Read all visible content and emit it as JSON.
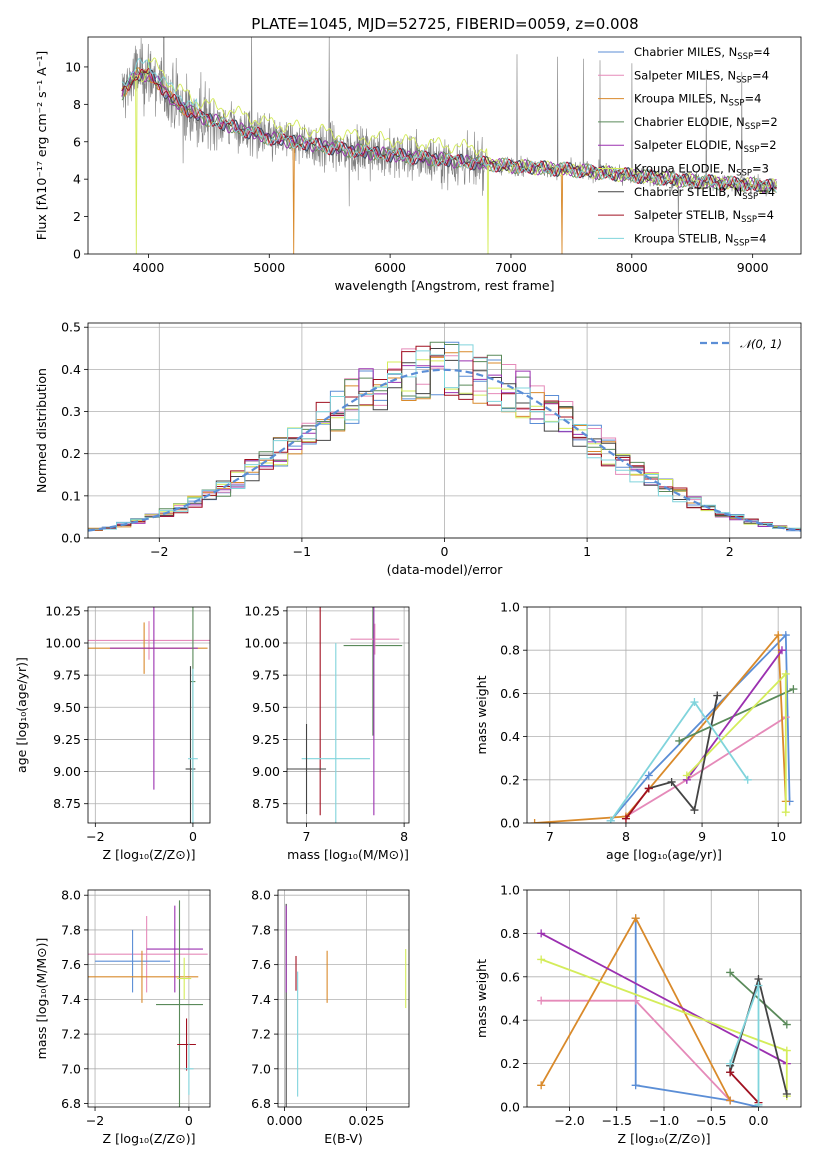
{
  "figure_title": "PLATE=1045, MJD=52725, FIBERID=0059, z=0.008",
  "colors": {
    "Chabrier MILES": "#5b8ed6",
    "Salpeter MILES": "#e58ab9",
    "Kroupa MILES": "#d98a2b",
    "Chabrier ELODIE": "#5a8a5a",
    "Salpeter ELODIE": "#9b30b0",
    "Kroupa ELODIE": "#d4ec5a",
    "Chabrier STELIB": "#444444",
    "Salpeter STELIB": "#a01020",
    "Kroupa STELIB": "#80d4dc",
    "data": "#808080",
    "normal": "#5b8ed6"
  },
  "chart_data": [
    {
      "type": "line",
      "title": "PLATE=1045, MJD=52725, FIBERID=0059, z=0.008",
      "xlabel": "wavelength [Angstrom, rest frame]",
      "ylabel": "Flux [fλ10⁻¹⁷ erg cm⁻² s⁻¹ A⁻¹]",
      "xlim": [
        3500,
        9400
      ],
      "ylim": [
        0,
        11.6
      ],
      "xticks": [
        4000,
        5000,
        6000,
        7000,
        8000,
        9000
      ],
      "yticks": [
        0,
        2,
        4,
        6,
        8,
        10
      ],
      "grid": false,
      "legend_position": "top-right",
      "legend": [
        {
          "series": "Chabrier MILES",
          "n_ssp": "4"
        },
        {
          "series": "Salpeter MILES",
          "n_ssp": "4"
        },
        {
          "series": "Kroupa MILES",
          "n_ssp": "4"
        },
        {
          "series": "Chabrier ELODIE",
          "n_ssp": "2"
        },
        {
          "series": "Salpeter ELODIE",
          "n_ssp": "2"
        },
        {
          "series": "Kroupa ELODIE",
          "n_ssp": "3"
        },
        {
          "series": "Chabrier STELIB",
          "n_ssp": "4"
        },
        {
          "series": "Salpeter STELIB",
          "n_ssp": "4"
        },
        {
          "series": "Kroupa STELIB",
          "n_ssp": "4"
        }
      ],
      "continuum": [
        [
          3780,
          8.6
        ],
        [
          3900,
          9.6
        ],
        [
          4000,
          9.6
        ],
        [
          4100,
          9.0
        ],
        [
          4200,
          8.2
        ],
        [
          4400,
          7.4
        ],
        [
          4600,
          7.0
        ],
        [
          4800,
          6.6
        ],
        [
          5000,
          6.2
        ],
        [
          5300,
          5.9
        ],
        [
          5600,
          5.6
        ],
        [
          6000,
          5.3
        ],
        [
          6500,
          5.0
        ],
        [
          7000,
          4.7
        ],
        [
          7500,
          4.5
        ],
        [
          8000,
          4.2
        ],
        [
          8500,
          3.9
        ],
        [
          9000,
          3.7
        ],
        [
          9200,
          3.6
        ]
      ]
    },
    {
      "type": "histogram",
      "xlabel": "(data-model)/error",
      "ylabel": "Normed distribution",
      "xlim": [
        -2.5,
        2.5
      ],
      "ylim": [
        0,
        0.51
      ],
      "xticks": [
        -2,
        -1,
        0,
        1,
        2
      ],
      "yticks": [
        0.0,
        0.1,
        0.2,
        0.3,
        0.4,
        0.5
      ],
      "grid": true,
      "legend_position": "top-right",
      "legend": [
        "𝒩(0, 1)"
      ],
      "bin_width": 0.1
    },
    {
      "type": "errorbar",
      "xlabel": "Z [log₁₀(Z/Z⊙)]",
      "ylabel": "age  [log₁₀(age/yr)]",
      "xlim": [
        -2.15,
        0.35
      ],
      "ylim": [
        8.6,
        10.28
      ],
      "xticks": [
        -2,
        0
      ],
      "yticks": [
        8.75,
        9.0,
        9.25,
        9.5,
        9.75,
        10.0,
        10.25
      ],
      "grid": true,
      "points": [
        {
          "series": "Salpeter MILES",
          "x": -0.9,
          "xerr": 1.4,
          "y": 10.02,
          "yerr": 0.15
        },
        {
          "series": "Kroupa MILES",
          "x": -1.0,
          "xerr": 1.3,
          "y": 9.96,
          "yerr": 0.2
        },
        {
          "series": "Salpeter ELODIE",
          "x": -0.8,
          "xerr": 0.9,
          "y": 9.96,
          "yerr": 1.1
        },
        {
          "series": "Chabrier ELODIE",
          "x": 0.0,
          "xerr": 0.05,
          "y": 9.7,
          "yerr": 1.0
        },
        {
          "series": "Chabrier STELIB",
          "x": -0.05,
          "xerr": 0.1,
          "y": 9.02,
          "yerr": 0.8
        },
        {
          "series": "Kroupa STELIB",
          "x": 0.0,
          "xerr": 0.1,
          "y": 9.1,
          "yerr": 0.7
        }
      ]
    },
    {
      "type": "errorbar",
      "xlabel": "mass [log₁₀(M/M⊙)]",
      "xlim": [
        6.8,
        8.05
      ],
      "ylim": [
        8.6,
        10.28
      ],
      "xticks": [
        7,
        8
      ],
      "yticks": [
        8.75,
        9.0,
        9.25,
        9.5,
        9.75,
        10.0,
        10.25
      ],
      "grid": true,
      "points": [
        {
          "series": "Chabrier ELODIE",
          "x": 7.68,
          "xerr": 0.3,
          "y": 9.98,
          "yerr": 0.7
        },
        {
          "series": "Salpeter MILES",
          "x": 7.7,
          "xerr": 0.25,
          "y": 10.03,
          "yerr": 0.12
        },
        {
          "series": "Salpeter STELIB",
          "x": 7.14,
          "xerr": 0.0,
          "y": 9.96,
          "yerr": 1.3
        },
        {
          "series": "Salpeter ELODIE",
          "x": 7.69,
          "xerr": 0.0,
          "y": 9.96,
          "yerr": 1.3
        },
        {
          "series": "Kroupa STELIB",
          "x": 7.3,
          "xerr": 0.35,
          "y": 9.1,
          "yerr": 0.9
        },
        {
          "series": "Chabrier STELIB",
          "x": 7.0,
          "xerr": 0.2,
          "y": 9.02,
          "yerr": 0.35
        }
      ]
    },
    {
      "type": "line",
      "xlabel": "age  [log₁₀(age/yr)]",
      "ylabel": "mass weight",
      "xlim": [
        6.7,
        10.3
      ],
      "ylim": [
        0,
        1.0
      ],
      "xticks": [
        7,
        8,
        9,
        10
      ],
      "yticks": [
        0.0,
        0.2,
        0.4,
        0.6,
        0.8,
        1.0
      ],
      "grid": true,
      "series": [
        {
          "name": "Chabrier MILES",
          "x": [
            7.8,
            8.3,
            10.1,
            10.15
          ],
          "y": [
            0.01,
            0.22,
            0.87,
            0.1
          ]
        },
        {
          "name": "Salpeter MILES",
          "x": [
            8.0,
            8.8,
            10.1
          ],
          "y": [
            0.03,
            0.2,
            0.49
          ]
        },
        {
          "name": "Kroupa MILES",
          "x": [
            6.8,
            8.0,
            10.0,
            10.1
          ],
          "y": [
            0.0,
            0.03,
            0.87,
            0.1
          ]
        },
        {
          "name": "Chabrier ELODIE",
          "x": [
            8.7,
            10.2
          ],
          "y": [
            0.38,
            0.62
          ]
        },
        {
          "name": "Salpeter ELODIE",
          "x": [
            8.8,
            10.05
          ],
          "y": [
            0.2,
            0.8
          ]
        },
        {
          "name": "Kroupa ELODIE",
          "x": [
            8.8,
            10.1,
            10.1
          ],
          "y": [
            0.22,
            0.69,
            0.05
          ]
        },
        {
          "name": "Chabrier STELIB",
          "x": [
            8.3,
            8.6,
            8.9,
            9.2
          ],
          "y": [
            0.16,
            0.19,
            0.06,
            0.59
          ]
        },
        {
          "name": "Salpeter STELIB",
          "x": [
            8.0,
            8.3
          ],
          "y": [
            0.02,
            0.16
          ]
        },
        {
          "name": "Kroupa STELIB",
          "x": [
            7.8,
            8.9,
            9.6
          ],
          "y": [
            0.01,
            0.56,
            0.2
          ]
        }
      ]
    },
    {
      "type": "errorbar",
      "xlabel": "Z [log₁₀(Z/Z⊙)]",
      "ylabel": "mass [log₁₀(M/M⊙)]",
      "xlim": [
        -2.15,
        0.45
      ],
      "ylim": [
        6.78,
        8.03
      ],
      "xticks": [
        -2,
        0
      ],
      "yticks": [
        6.8,
        7.0,
        7.2,
        7.4,
        7.6,
        7.8,
        8.0
      ],
      "grid": true,
      "points": [
        {
          "series": "Salpeter MILES",
          "x": -0.9,
          "xerr": 1.3,
          "y": 7.66,
          "yerr": 0.22
        },
        {
          "series": "Chabrier MILES",
          "x": -1.2,
          "xerr": 0.8,
          "y": 7.62,
          "yerr": 0.18
        },
        {
          "series": "Kroupa MILES",
          "x": -1.0,
          "xerr": 1.2,
          "y": 7.53,
          "yerr": 0.15
        },
        {
          "series": "Salpeter ELODIE",
          "x": -0.3,
          "xerr": 0.6,
          "y": 7.69,
          "yerr": 0.25
        },
        {
          "series": "Chabrier ELODIE",
          "x": -0.2,
          "xerr": 0.5,
          "y": 7.37,
          "yerr": 0.6
        },
        {
          "series": "Salpeter STELIB",
          "x": -0.05,
          "xerr": 0.2,
          "y": 7.14,
          "yerr": 0.15
        },
        {
          "series": "Kroupa STELIB",
          "x": 0.0,
          "xerr": 0.1,
          "y": 7.0,
          "yerr": 0.15
        },
        {
          "series": "Kroupa ELODIE",
          "x": -0.1,
          "xerr": 0.15,
          "y": 7.52,
          "yerr": 0.12
        }
      ]
    },
    {
      "type": "errorbar",
      "xlabel": "E(B-V)",
      "xlim": [
        -0.002,
        0.038
      ],
      "ylim": [
        6.78,
        8.03
      ],
      "xticks": [
        0.0,
        0.025
      ],
      "yticks": [
        6.8,
        7.0,
        7.2,
        7.4,
        7.6,
        7.8,
        8.0
      ],
      "grid": true,
      "points": [
        {
          "series": "Chabrier STELIB",
          "x": 0.0005,
          "y": 7.3,
          "yerr": 0.65
        },
        {
          "series": "Salpeter ELODIE",
          "x": 0.0005,
          "y": 7.69,
          "yerr": 0.25
        },
        {
          "series": "Salpeter STELIB",
          "x": 0.0035,
          "y": 7.55,
          "yerr": 0.1
        },
        {
          "series": "Kroupa STELIB",
          "x": 0.004,
          "y": 7.2,
          "yerr": 0.36
        },
        {
          "series": "Kroupa MILES",
          "x": 0.013,
          "y": 7.53,
          "yerr": 0.15
        },
        {
          "series": "Kroupa ELODIE",
          "x": 0.037,
          "y": 7.52,
          "yerr": 0.17
        }
      ]
    },
    {
      "type": "line",
      "xlabel": "Z [log₁₀(Z/Z⊙)]",
      "ylabel": "mass weight",
      "xlim": [
        -2.45,
        0.45
      ],
      "ylim": [
        0,
        1.0
      ],
      "xticks": [
        -2.0,
        -1.5,
        -1.0,
        -0.5,
        0.0
      ],
      "yticks": [
        0.0,
        0.2,
        0.4,
        0.6,
        0.8,
        1.0
      ],
      "grid": true,
      "series": [
        {
          "name": "Chabrier MILES",
          "x": [
            -1.3,
            -1.3,
            -0.3,
            0.0
          ],
          "y": [
            0.87,
            0.1,
            0.03,
            0.0
          ]
        },
        {
          "name": "Salpeter MILES",
          "x": [
            -2.3,
            -1.3,
            -0.3
          ],
          "y": [
            0.49,
            0.49,
            0.03
          ]
        },
        {
          "name": "Kroupa MILES",
          "x": [
            -2.3,
            -1.3,
            -0.3
          ],
          "y": [
            0.1,
            0.87,
            0.03
          ]
        },
        {
          "name": "Chabrier ELODIE",
          "x": [
            -0.3,
            0.3
          ],
          "y": [
            0.62,
            0.38
          ]
        },
        {
          "name": "Salpeter ELODIE",
          "x": [
            -2.3,
            0.3
          ],
          "y": [
            0.8,
            0.2
          ]
        },
        {
          "name": "Kroupa ELODIE",
          "x": [
            -2.3,
            0.3,
            0.3
          ],
          "y": [
            0.68,
            0.26,
            0.05
          ]
        },
        {
          "name": "Chabrier STELIB",
          "x": [
            -0.3,
            -0.3,
            0.0,
            0.3
          ],
          "y": [
            0.19,
            0.16,
            0.59,
            0.06
          ]
        },
        {
          "name": "Salpeter STELIB",
          "x": [
            -0.3,
            0.0
          ],
          "y": [
            0.16,
            0.02
          ]
        },
        {
          "name": "Kroupa STELIB",
          "x": [
            -0.3,
            0.0,
            0.0
          ],
          "y": [
            0.2,
            0.56,
            0.01
          ]
        }
      ]
    }
  ]
}
